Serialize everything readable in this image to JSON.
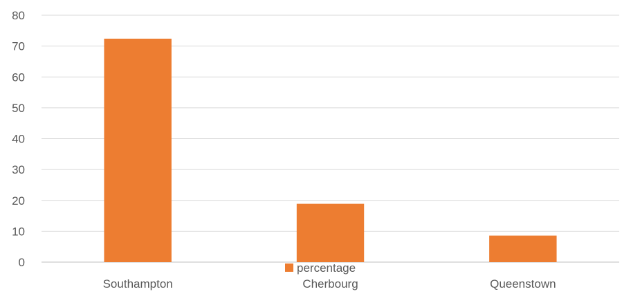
{
  "chart_data": {
    "type": "bar",
    "title": "",
    "xlabel": "",
    "ylabel": "",
    "categories": [
      "Southampton",
      "Cherbourg",
      "Queenstown"
    ],
    "series": [
      {
        "name": "percentage",
        "values": [
          72.4,
          18.9,
          8.6
        ],
        "color": "#ED7D31"
      }
    ],
    "ylim": [
      0,
      80
    ],
    "yticks": [
      0,
      10,
      20,
      30,
      40,
      50,
      60,
      70,
      80
    ],
    "grid": true,
    "legend": "bottom"
  }
}
